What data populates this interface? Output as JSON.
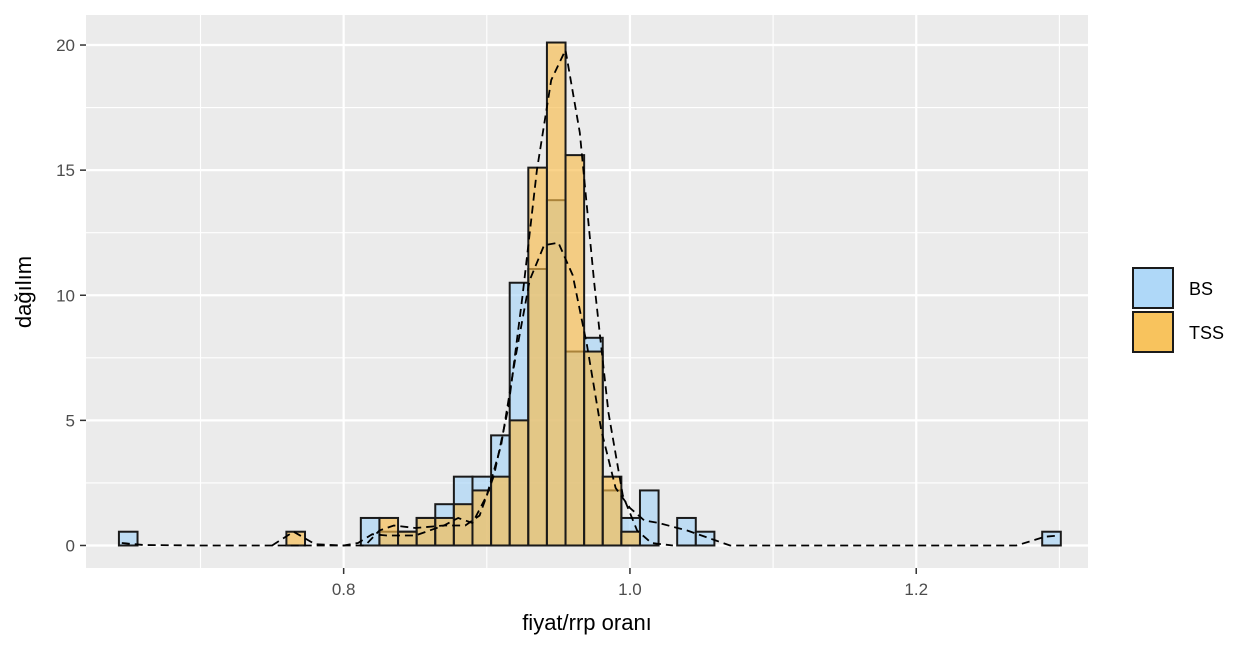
{
  "chart_data": {
    "type": "bar",
    "subtype": "histogram-with-density",
    "title": "",
    "xlabel": "fiyat/rrp oranı",
    "ylabel": "dağılım",
    "xlim": [
      0.62,
      1.32
    ],
    "ylim": [
      -0.9,
      21.2
    ],
    "x_ticks": [
      0.8,
      1.0,
      1.2
    ],
    "x_tick_labels": [
      "0.8",
      "1.0",
      "1.2"
    ],
    "y_ticks": [
      0,
      5,
      10,
      15,
      20
    ],
    "y_tick_labels": [
      "0",
      "5",
      "10",
      "15",
      "20"
    ],
    "grid": true,
    "legend_position": "right",
    "bin_width": 0.013,
    "bar_overlay": "identity",
    "series": [
      {
        "name": "BS",
        "color": "#a6d4f7",
        "bars": [
          {
            "x": 0.6495,
            "value": 0.55
          },
          {
            "x": 0.8185,
            "value": 1.1
          },
          {
            "x": 0.8315,
            "value": 0.55
          },
          {
            "x": 0.8445,
            "value": 0.55
          },
          {
            "x": 0.8575,
            "value": 1.1
          },
          {
            "x": 0.8705,
            "value": 1.65
          },
          {
            "x": 0.8835,
            "value": 2.75
          },
          {
            "x": 0.8965,
            "value": 2.75
          },
          {
            "x": 0.9095,
            "value": 4.4
          },
          {
            "x": 0.9225,
            "value": 10.5
          },
          {
            "x": 0.9355,
            "value": 11.05
          },
          {
            "x": 0.9485,
            "value": 13.8
          },
          {
            "x": 0.9615,
            "value": 7.75
          },
          {
            "x": 0.9745,
            "value": 8.3
          },
          {
            "x": 0.9875,
            "value": 2.2
          },
          {
            "x": 1.0005,
            "value": 1.1
          },
          {
            "x": 1.0135,
            "value": 2.2
          },
          {
            "x": 1.0395,
            "value": 1.1
          },
          {
            "x": 1.0525,
            "value": 0.55
          },
          {
            "x": 1.2945,
            "value": 0.55
          }
        ],
        "density": [
          [
            0.645,
            0.1
          ],
          [
            0.66,
            0.02
          ],
          [
            0.7,
            0.0
          ],
          [
            0.8,
            0.0
          ],
          [
            0.81,
            0.1
          ],
          [
            0.82,
            0.45
          ],
          [
            0.83,
            0.4
          ],
          [
            0.85,
            0.4
          ],
          [
            0.87,
            0.8
          ],
          [
            0.88,
            1.1
          ],
          [
            0.89,
            0.9
          ],
          [
            0.9,
            2.0
          ],
          [
            0.91,
            4.0
          ],
          [
            0.92,
            7.5
          ],
          [
            0.93,
            10.6
          ],
          [
            0.94,
            12.0
          ],
          [
            0.95,
            12.1
          ],
          [
            0.96,
            10.8
          ],
          [
            0.97,
            8.0
          ],
          [
            0.98,
            4.6
          ],
          [
            0.99,
            2.3
          ],
          [
            1.0,
            1.5
          ],
          [
            1.01,
            1.0
          ],
          [
            1.02,
            0.9
          ],
          [
            1.04,
            0.6
          ],
          [
            1.05,
            0.4
          ],
          [
            1.06,
            0.2
          ],
          [
            1.07,
            0.0
          ],
          [
            1.27,
            0.0
          ],
          [
            1.29,
            0.35
          ],
          [
            1.3,
            0.4
          ]
        ]
      },
      {
        "name": "TSS",
        "color": "#f7bc4b",
        "bars": [
          {
            "x": 0.7665,
            "value": 0.55
          },
          {
            "x": 0.8315,
            "value": 1.1
          },
          {
            "x": 0.8445,
            "value": 0.55
          },
          {
            "x": 0.8575,
            "value": 1.1
          },
          {
            "x": 0.8705,
            "value": 1.1
          },
          {
            "x": 0.8835,
            "value": 1.65
          },
          {
            "x": 0.8965,
            "value": 2.2
          },
          {
            "x": 0.9095,
            "value": 2.75
          },
          {
            "x": 0.9225,
            "value": 5.0
          },
          {
            "x": 0.9355,
            "value": 15.1
          },
          {
            "x": 0.9485,
            "value": 20.1
          },
          {
            "x": 0.9615,
            "value": 15.6
          },
          {
            "x": 0.9745,
            "value": 7.75
          },
          {
            "x": 0.9875,
            "value": 2.75
          },
          {
            "x": 1.0005,
            "value": 0.55
          }
        ],
        "density": [
          [
            0.75,
            0.0
          ],
          [
            0.765,
            0.55
          ],
          [
            0.78,
            0.05
          ],
          [
            0.8,
            0.0
          ],
          [
            0.815,
            0.0
          ],
          [
            0.825,
            0.6
          ],
          [
            0.835,
            0.8
          ],
          [
            0.85,
            0.7
          ],
          [
            0.87,
            0.8
          ],
          [
            0.885,
            0.8
          ],
          [
            0.895,
            1.2
          ],
          [
            0.905,
            2.8
          ],
          [
            0.915,
            5.5
          ],
          [
            0.925,
            10.0
          ],
          [
            0.935,
            15.0
          ],
          [
            0.945,
            18.6
          ],
          [
            0.955,
            19.8
          ],
          [
            0.965,
            16.5
          ],
          [
            0.975,
            10.5
          ],
          [
            0.985,
            5.3
          ],
          [
            0.995,
            2.0
          ],
          [
            1.005,
            0.6
          ],
          [
            1.015,
            0.1
          ],
          [
            1.03,
            0.0
          ]
        ]
      }
    ]
  }
}
